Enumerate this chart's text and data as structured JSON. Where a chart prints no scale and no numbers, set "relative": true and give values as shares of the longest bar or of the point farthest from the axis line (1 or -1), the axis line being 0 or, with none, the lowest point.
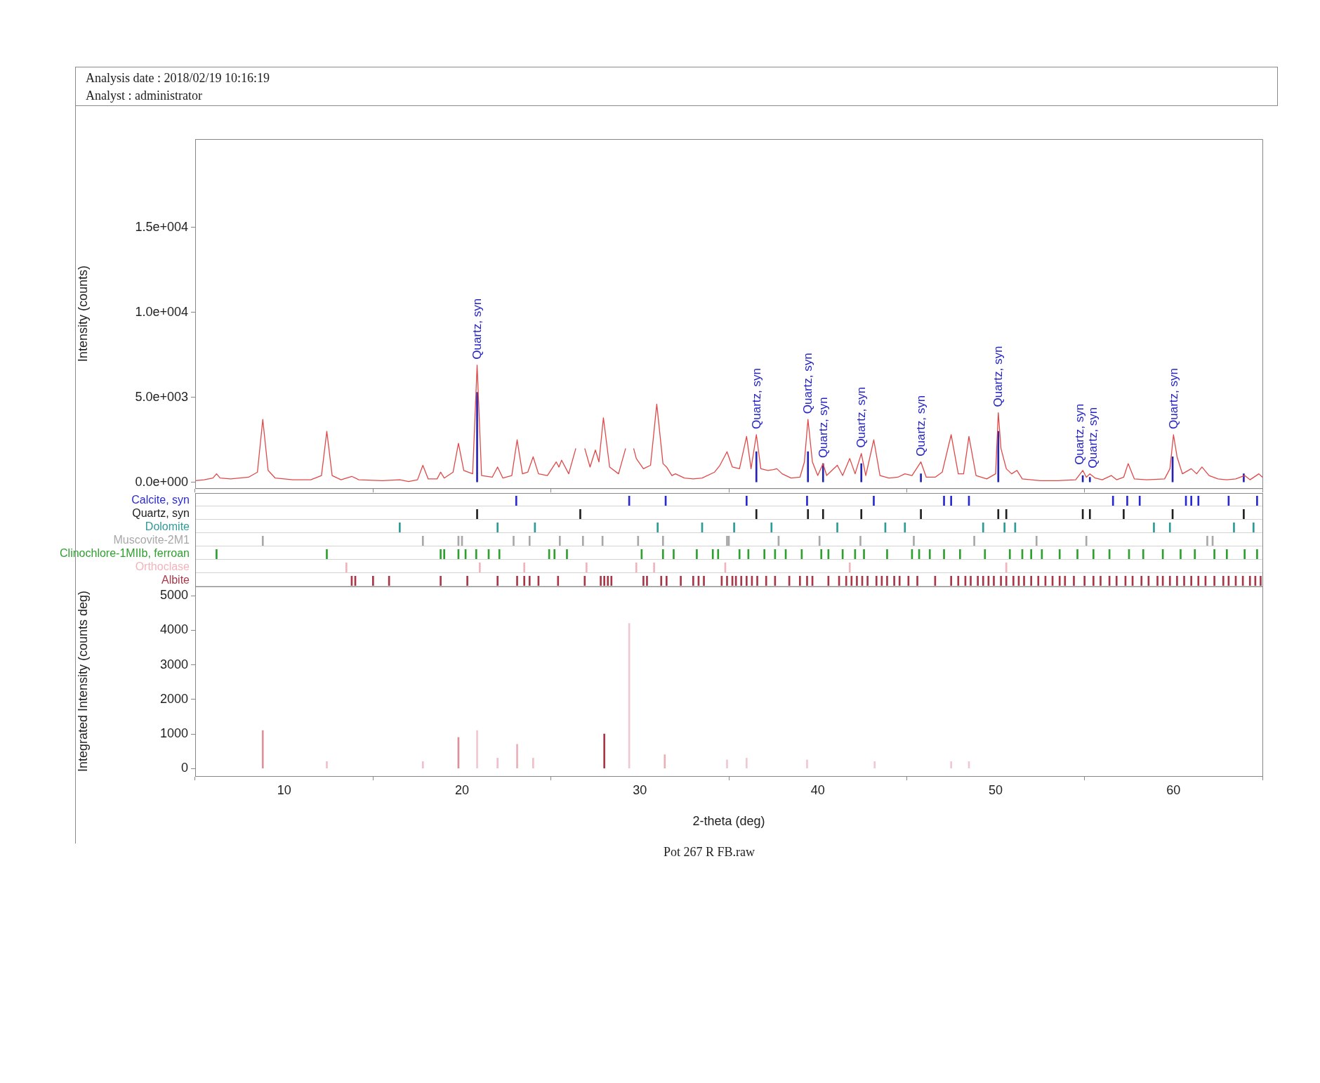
{
  "chart_data": [
    {
      "type": "line",
      "ylabel": "Intensity (counts)",
      "xlim": [
        5,
        65
      ],
      "xticks": [
        10,
        20,
        30,
        40,
        50,
        60
      ],
      "ylim": [
        -350,
        20200
      ],
      "yticks": [
        {
          "value": 0,
          "label": "0.0e+000"
        },
        {
          "value": 5000,
          "label": "5.0e+003"
        },
        {
          "value": 10000,
          "label": "1.0e+004"
        },
        {
          "value": 15000,
          "label": "1.5e+004"
        }
      ],
      "tick_labels": "y",
      "marker": "none",
      "line_style": "solid",
      "annotations": [
        "Analysis date : 2018/02/19 10:16:19",
        "Analyst : administrator",
        {
          "text": "Quartz, syn",
          "x": 20.85,
          "y": 6900
        },
        {
          "text": "Quartz, syn",
          "x": 36.55,
          "y": 2800
        },
        {
          "text": "Quartz, syn",
          "x": 39.45,
          "y": 3700
        },
        {
          "text": "Quartz, syn",
          "x": 40.3,
          "y": 1100
        },
        {
          "text": "Quartz, syn",
          "x": 42.45,
          "y": 1700
        },
        {
          "text": "Quartz, syn",
          "x": 45.8,
          "y": 1200
        },
        {
          "text": "Quartz, syn",
          "x": 50.15,
          "y": 4100
        },
        {
          "text": "Quartz, syn",
          "x": 54.9,
          "y": 700
        },
        {
          "text": "Quartz, syn",
          "x": 55.3,
          "y": 500
        },
        {
          "text": "Quartz, syn",
          "x": 60.0,
          "y": 2800
        }
      ],
      "series": [
        {
          "type": "line",
          "color": "#e04848",
          "x": [
            5.0,
            5.5,
            6.0,
            6.2,
            6.4,
            7.0,
            7.5,
            8.0,
            8.5,
            8.8,
            9.1,
            9.5,
            10.5,
            11.5,
            12.1,
            12.4,
            12.7,
            13.2,
            13.8,
            14.2,
            15.5,
            16.5,
            17.0,
            17.5,
            17.8,
            18.1,
            18.6,
            18.8,
            19.0,
            19.5,
            19.8,
            20.1,
            20.6,
            20.85,
            21.1,
            21.7,
            22.0,
            22.3,
            22.8,
            23.1,
            23.4,
            23.7,
            24.0,
            24.3,
            24.8,
            25.3,
            25.45,
            25.6,
            26.0,
            26.4,
            26.65,
            26.9,
            27.2,
            27.5,
            27.7,
            27.95,
            28.3,
            28.8,
            29.2,
            29.4,
            29.65,
            29.8,
            30.2,
            30.6,
            30.95,
            31.3,
            31.5,
            31.8,
            32.0,
            32.5,
            33.0,
            33.5,
            34.2,
            34.5,
            34.9,
            35.2,
            35.6,
            36.0,
            36.25,
            36.55,
            36.8,
            37.2,
            37.5,
            37.7,
            38.0,
            38.5,
            39.0,
            39.25,
            39.45,
            39.7,
            40.0,
            40.3,
            40.5,
            41.1,
            41.4,
            41.8,
            42.1,
            42.45,
            42.7,
            43.15,
            43.5,
            44.0,
            44.5,
            44.9,
            45.3,
            45.8,
            46.1,
            46.6,
            47.0,
            47.5,
            47.9,
            48.2,
            48.5,
            48.9,
            49.5,
            50.0,
            50.15,
            50.3,
            50.6,
            50.9,
            51.2,
            51.5,
            52.5,
            53.5,
            54.5,
            54.9,
            55.1,
            55.3,
            55.6,
            56.0,
            56.5,
            56.8,
            57.2,
            57.45,
            57.8,
            58.5,
            59.5,
            59.8,
            60.0,
            60.2,
            60.5,
            61.0,
            61.3,
            61.6,
            62.0,
            62.5,
            63.0,
            63.5,
            64.0,
            64.3,
            64.8,
            65.0
          ],
          "values": [
            100,
            150,
            250,
            500,
            250,
            200,
            250,
            300,
            600,
            3700,
            700,
            250,
            150,
            150,
            400,
            3000,
            400,
            150,
            350,
            150,
            100,
            150,
            50,
            150,
            1000,
            200,
            200,
            600,
            250,
            600,
            2300,
            700,
            500,
            6900,
            400,
            300,
            900,
            250,
            400,
            2500,
            500,
            600,
            1500,
            500,
            400,
            1200,
            900,
            1300,
            500,
            2000,
            null,
            2000,
            900,
            1900,
            1200,
            3800,
            900,
            500,
            2000,
            null,
            2000,
            1400,
            800,
            1000,
            4600,
            1100,
            900,
            400,
            500,
            250,
            200,
            250,
            600,
            1000,
            1800,
            900,
            800,
            2700,
            800,
            2800,
            800,
            700,
            750,
            800,
            500,
            250,
            300,
            1200,
            3700,
            1200,
            400,
            1100,
            400,
            1000,
            400,
            1400,
            500,
            1700,
            400,
            2500,
            400,
            250,
            300,
            500,
            400,
            1200,
            300,
            300,
            600,
            2800,
            500,
            500,
            2700,
            400,
            200,
            500,
            4100,
            2000,
            800,
            500,
            700,
            200,
            100,
            100,
            150,
            700,
            300,
            500,
            250,
            150,
            400,
            150,
            300,
            1100,
            200,
            150,
            200,
            800,
            2800,
            1500,
            500,
            800,
            500,
            900,
            400,
            200,
            150,
            200,
            400,
            150,
            500,
            300
          ]
        },
        {
          "type": "bar",
          "color": "#2424b4",
          "x": [
            20.85,
            26.65,
            36.55,
            39.45,
            40.3,
            42.45,
            45.8,
            50.15,
            54.9,
            55.3,
            59.95,
            63.95
          ],
          "values": [
            5300,
            null,
            1800,
            1800,
            1100,
            1100,
            500,
            3000,
            400,
            300,
            1500,
            500
          ]
        }
      ]
    },
    {
      "type": "bar",
      "relative": true,
      "xlim": [
        5,
        65
      ],
      "tick_labels": false,
      "series": [
        {
          "name": "Calcite, syn",
          "color": "#2a2ad0",
          "x": [
            23.05,
            29.4,
            31.45,
            36.0,
            39.4,
            43.15,
            47.1,
            47.5,
            48.5,
            56.6,
            57.4,
            58.1,
            60.7,
            61.0,
            61.4,
            63.1,
            64.7
          ],
          "values": [
            1,
            1,
            1,
            1,
            1,
            1,
            1,
            1,
            1,
            1,
            1,
            1,
            1,
            1,
            1,
            1,
            1
          ]
        }
      ]
    },
    {
      "type": "bar",
      "relative": true,
      "xlim": [
        5,
        65
      ],
      "tick_labels": false,
      "series": [
        {
          "name": "Quartz, syn",
          "color": "#202020",
          "x": [
            20.85,
            26.65,
            36.55,
            39.45,
            40.3,
            42.45,
            45.8,
            50.15,
            50.6,
            54.9,
            55.3,
            57.2,
            59.95,
            63.95
          ],
          "values": [
            1,
            1,
            1,
            1,
            1,
            1,
            1,
            1,
            1,
            1,
            1,
            1,
            1,
            1
          ]
        }
      ]
    },
    {
      "type": "bar",
      "relative": true,
      "xlim": [
        5,
        65
      ],
      "tick_labels": false,
      "series": [
        {
          "name": "Dolomite",
          "color": "#2f9a9a",
          "x": [
            16.5,
            22.0,
            24.1,
            31.0,
            33.5,
            35.3,
            37.4,
            41.1,
            43.8,
            44.9,
            49.3,
            50.5,
            51.1,
            58.9,
            59.8,
            63.4,
            64.5
          ],
          "values": [
            1,
            1,
            1,
            1,
            1,
            1,
            1,
            1,
            1,
            1,
            1,
            1,
            1,
            1,
            1,
            1,
            1
          ]
        }
      ]
    },
    {
      "type": "bar",
      "relative": true,
      "xlim": [
        5,
        65
      ],
      "tick_labels": false,
      "series": [
        {
          "name": "Muscovite-2M1",
          "color": "#a8a8a8",
          "x": [
            8.8,
            17.8,
            19.8,
            20.0,
            22.9,
            23.8,
            25.5,
            26.8,
            27.9,
            29.9,
            31.3,
            34.9,
            35.0,
            37.8,
            40.1,
            42.4,
            45.4,
            48.8,
            52.3,
            55.1,
            61.9,
            62.2
          ],
          "values": [
            1,
            1,
            1,
            1,
            1,
            1,
            1,
            1,
            1,
            1,
            1,
            1,
            1,
            1,
            1,
            1,
            1,
            1,
            1,
            1,
            1,
            1
          ]
        }
      ]
    },
    {
      "type": "bar",
      "relative": true,
      "xlim": [
        5,
        65
      ],
      "tick_labels": false,
      "series": [
        {
          "name": "Clinochlore-1MIIb, ferroan",
          "color": "#2ea02e",
          "x": [
            6.2,
            12.4,
            18.8,
            19.0,
            19.8,
            20.2,
            20.8,
            21.5,
            22.1,
            24.9,
            25.2,
            25.9,
            30.1,
            31.3,
            31.9,
            33.2,
            34.1,
            34.4,
            35.6,
            36.1,
            37.0,
            37.6,
            38.2,
            39.1,
            40.2,
            40.6,
            41.4,
            42.1,
            42.6,
            43.9,
            45.3,
            45.7,
            46.3,
            47.1,
            48.0,
            49.4,
            50.8,
            51.5,
            52.0,
            52.6,
            53.6,
            54.6,
            55.5,
            56.4,
            57.5,
            58.3,
            59.4,
            60.4,
            61.2,
            62.3,
            63.0,
            64.0,
            64.7
          ],
          "values": [
            1,
            1,
            1,
            1,
            1,
            1,
            1,
            1,
            1,
            1,
            1,
            1,
            1,
            1,
            1,
            1,
            1,
            1,
            1,
            1,
            1,
            1,
            1,
            1,
            1,
            1,
            1,
            1,
            1,
            1,
            1,
            1,
            1,
            1,
            1,
            1,
            1,
            1,
            1,
            1,
            1,
            1,
            1,
            1,
            1,
            1,
            1,
            1,
            1,
            1,
            1,
            1,
            1
          ]
        }
      ]
    },
    {
      "type": "bar",
      "relative": true,
      "xlim": [
        5,
        65
      ],
      "tick_labels": false,
      "series": [
        {
          "name": "Orthoclase",
          "color": "#f2b4bc",
          "x": [
            13.5,
            21.0,
            23.5,
            27.0,
            29.8,
            30.8,
            34.8,
            41.8,
            50.6
          ],
          "values": [
            1,
            1,
            1,
            1,
            1,
            1,
            1,
            1,
            1
          ]
        }
      ]
    },
    {
      "type": "bar",
      "relative": true,
      "xlim": [
        5,
        65
      ],
      "tick_labels": false,
      "series": [
        {
          "name": "Albite",
          "color": "#a83848",
          "x": [
            13.8,
            14.0,
            15.0,
            15.9,
            18.8,
            20.3,
            22.0,
            23.1,
            23.5,
            23.8,
            24.3,
            25.4,
            26.9,
            27.8,
            28.0,
            28.2,
            28.4,
            30.2,
            30.4,
            31.2,
            31.5,
            32.3,
            33.0,
            33.3,
            33.6,
            34.6,
            34.9,
            35.2,
            35.4,
            35.7,
            36.0,
            36.3,
            36.6,
            37.1,
            37.6,
            38.4,
            39.0,
            39.4,
            39.7,
            40.6,
            41.2,
            41.6,
            41.9,
            42.2,
            42.5,
            42.8,
            43.3,
            43.6,
            43.9,
            44.3,
            44.6,
            45.1,
            45.6,
            46.6,
            47.5,
            47.9,
            48.3,
            48.6,
            49.0,
            49.3,
            49.6,
            49.9,
            50.3,
            50.6,
            51.0,
            51.3,
            51.6,
            52.0,
            52.4,
            52.8,
            53.2,
            53.6,
            53.9,
            54.4,
            55.0,
            55.5,
            55.9,
            56.4,
            56.8,
            57.3,
            57.7,
            58.2,
            58.6,
            59.1,
            59.4,
            59.8,
            60.2,
            60.6,
            61.0,
            61.4,
            61.8,
            62.3,
            62.8,
            63.1,
            63.5,
            63.9,
            64.3,
            64.6,
            64.9
          ],
          "values": [
            1,
            1,
            1,
            1,
            1,
            1,
            1,
            1,
            1,
            1,
            1,
            1,
            1,
            1,
            1,
            1,
            1,
            1,
            1,
            1,
            1,
            1,
            1,
            1,
            1,
            1,
            1,
            1,
            1,
            1,
            1,
            1,
            1,
            1,
            1,
            1,
            1,
            1,
            1,
            1,
            1,
            1,
            1,
            1,
            1,
            1,
            1,
            1,
            1,
            1,
            1,
            1,
            1,
            1,
            1,
            1,
            1,
            1,
            1,
            1,
            1,
            1,
            1,
            1,
            1,
            1,
            1,
            1,
            1,
            1,
            1,
            1,
            1,
            1,
            1,
            1,
            1,
            1,
            1,
            1,
            1,
            1,
            1,
            1,
            1,
            1,
            1,
            1,
            1,
            1,
            1,
            1,
            1,
            1,
            1,
            1,
            1,
            1,
            1
          ]
        }
      ]
    },
    {
      "type": "bar",
      "xlabel": "2-theta (deg)",
      "ylabel": "Integrated Intensity (counts deg)",
      "xlim": [
        5,
        65
      ],
      "xticks": [
        10,
        20,
        30,
        40,
        50,
        60
      ],
      "ylim": [
        -220,
        5270
      ],
      "yticks": [
        0,
        1000,
        2000,
        3000,
        4000,
        5000
      ],
      "annotations": [
        "Pot 267 R FB.raw"
      ],
      "x": [
        8.8,
        12.4,
        17.8,
        19.8,
        20.85,
        22.0,
        23.1,
        24.0,
        26.65,
        28.0,
        29.4,
        31.4,
        34.9,
        36.0,
        39.4,
        43.2,
        47.5,
        48.5
      ],
      "values": [
        1100,
        200,
        200,
        900,
        1100,
        300,
        700,
        300,
        null,
        1000,
        4200,
        400,
        250,
        300,
        250,
        200,
        200,
        200
      ],
      "colors": [
        "#e09098",
        "#f0c0c8",
        "#f0c0c8",
        "#d8909a",
        "#f0c8d0",
        "#f0c0c8",
        "#eab0b8",
        "#f0c0c8",
        "#f4d0d6",
        "#a83848",
        "#f0c8d0",
        "#e8b0b8",
        "#f0c8d0",
        "#f0c8d0",
        "#f0c8d0",
        "#f0c8d0",
        "#f0c8d0",
        "#f0c8d0"
      ]
    }
  ]
}
